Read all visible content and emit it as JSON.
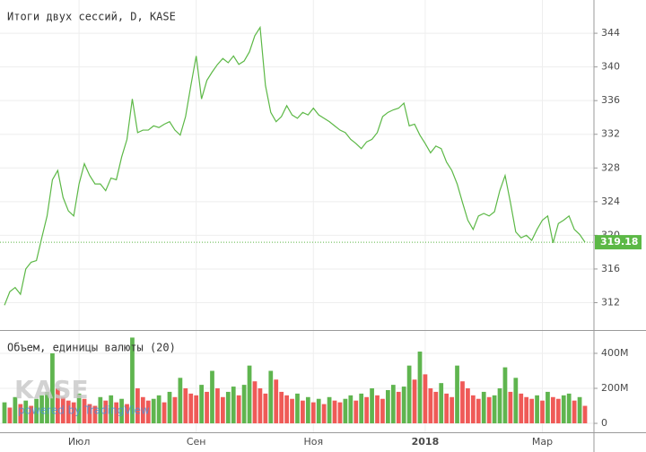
{
  "chart_data": [
    {
      "type": "line",
      "title": "Итоги двух сессий, D, KASE",
      "categories": [
        null,
        null,
        null,
        null,
        null,
        null,
        null,
        null,
        null,
        null,
        null,
        null,
        null,
        null,
        "Июл",
        null,
        null,
        null,
        null,
        null,
        null,
        null,
        null,
        null,
        null,
        null,
        null,
        null,
        null,
        null,
        null,
        null,
        null,
        null,
        null,
        null,
        "Сен",
        null,
        null,
        null,
        null,
        null,
        null,
        null,
        null,
        null,
        null,
        null,
        null,
        null,
        null,
        null,
        null,
        null,
        null,
        null,
        null,
        null,
        "Ноя",
        null,
        null,
        null,
        null,
        null,
        null,
        null,
        null,
        null,
        null,
        null,
        null,
        null,
        null,
        null,
        null,
        null,
        null,
        null,
        null,
        "2018",
        null,
        null,
        null,
        null,
        null,
        null,
        null,
        null,
        null,
        null,
        null,
        null,
        null,
        null,
        null,
        null,
        null,
        null,
        null,
        null,
        null,
        "Мар",
        null,
        null,
        null,
        null,
        null,
        null,
        null,
        null
      ],
      "series": [
        {
          "name": "Итоги двух сессий",
          "color": "#5cb846",
          "values": [
            311.7,
            313.3,
            313.8,
            313,
            316,
            316.8,
            317,
            319.7,
            322.3,
            326.6,
            327.7,
            324.5,
            322.9,
            322.3,
            326.1,
            328.5,
            327.1,
            326.1,
            326.1,
            325.3,
            326.8,
            326.6,
            329.3,
            331.4,
            336.2,
            332.2,
            332.5,
            332.5,
            333,
            332.8,
            333.2,
            333.5,
            332.5,
            331.9,
            334.1,
            337.8,
            341.3,
            336.2,
            338.4,
            339.4,
            340.3,
            341,
            340.5,
            341.3,
            340.3,
            340.7,
            341.8,
            343.7,
            344.7,
            337.8,
            334.6,
            333.5,
            334.1,
            335.4,
            334.3,
            333.9,
            334.6,
            334.3,
            335.1,
            334.3,
            333.9,
            333.5,
            333,
            332.5,
            332.2,
            331.4,
            330.9,
            330.3,
            331.1,
            331.4,
            332.2,
            334.1,
            334.6,
            334.9,
            335.1,
            335.7,
            333,
            333.2,
            331.9,
            330.9,
            329.8,
            330.6,
            330.3,
            328.7,
            327.7,
            326.1,
            323.9,
            321.8,
            320.7,
            322.3,
            322.6,
            322.3,
            322.8,
            325.3,
            327.1,
            323.9,
            320.4,
            319.7,
            320,
            319.4,
            320.7,
            321.8,
            322.3,
            319.1,
            321.4,
            321.8,
            322.3,
            320.7,
            320.1,
            319.18
          ]
        }
      ],
      "ylim": [
        308.75,
        347.95
      ],
      "yticks": [
        312,
        316,
        320,
        324,
        328,
        332,
        336,
        340,
        344
      ],
      "grid": true
    },
    {
      "type": "bar",
      "title": "Объем, единицы валюты (20)",
      "categories": [
        null,
        null,
        null,
        null,
        null,
        null,
        null,
        null,
        null,
        null,
        null,
        null,
        null,
        null,
        "Июл",
        null,
        null,
        null,
        null,
        null,
        null,
        null,
        null,
        null,
        null,
        null,
        null,
        null,
        null,
        null,
        null,
        null,
        null,
        null,
        null,
        null,
        "Сен",
        null,
        null,
        null,
        null,
        null,
        null,
        null,
        null,
        null,
        null,
        null,
        null,
        null,
        null,
        null,
        null,
        null,
        null,
        null,
        null,
        null,
        "Ноя",
        null,
        null,
        null,
        null,
        null,
        null,
        null,
        null,
        null,
        null,
        null,
        null,
        null,
        null,
        null,
        null,
        null,
        null,
        null,
        null,
        "2018",
        null,
        null,
        null,
        null,
        null,
        null,
        null,
        null,
        null,
        null,
        null,
        null,
        null,
        null,
        null,
        null,
        null,
        null,
        null,
        null,
        null,
        "Мар",
        null,
        null,
        null,
        null,
        null,
        null,
        null,
        null
      ],
      "series": [
        {
          "name": "Объем",
          "up_color": "#5fb54f",
          "down_color": "#ef5a57",
          "values": [
            120,
            90,
            150,
            110,
            130,
            100,
            140,
            160,
            180,
            400,
            200,
            150,
            130,
            120,
            170,
            140,
            110,
            100,
            150,
            130,
            160,
            120,
            140,
            110,
            490,
            200,
            150,
            130,
            140,
            160,
            120,
            180,
            150,
            260,
            200,
            170,
            160,
            220,
            180,
            300,
            200,
            150,
            180,
            210,
            160,
            220,
            330,
            240,
            200,
            170,
            300,
            250,
            180,
            160,
            140,
            170,
            130,
            150,
            120,
            140,
            110,
            150,
            130,
            120,
            140,
            160,
            130,
            170,
            150,
            200,
            160,
            140,
            190,
            220,
            180,
            210,
            330,
            250,
            410,
            280,
            200,
            180,
            230,
            170,
            150,
            330,
            240,
            200,
            160,
            140,
            180,
            150,
            160,
            200,
            320,
            180,
            260,
            170,
            150,
            140,
            160,
            130,
            180,
            150,
            140,
            160,
            170,
            130,
            150,
            100
          ]
        }
      ],
      "ylim": [
        -51,
        528
      ],
      "yticks": [
        0,
        {
          "value": 200,
          "label": "200M"
        },
        {
          "value": 400,
          "label": "400M"
        }
      ],
      "grid": true
    }
  ],
  "watermark": {
    "logo": "KASE",
    "text": "powered by TradingView"
  }
}
